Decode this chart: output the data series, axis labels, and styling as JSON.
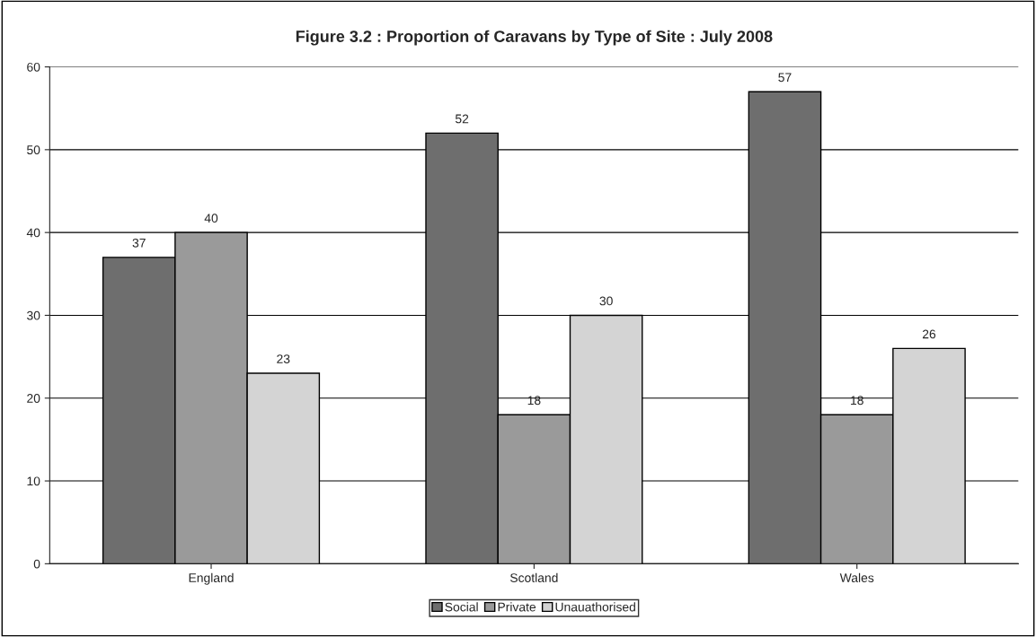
{
  "chart_data": {
    "type": "bar",
    "title": "Figure 3.2 : Proportion of Caravans by Type of Site : July 2008",
    "categories": [
      "England",
      "Scotland",
      "Wales"
    ],
    "series": [
      {
        "name": "Social",
        "color": "#6e6e6e",
        "values": [
          37,
          52,
          57
        ]
      },
      {
        "name": "Private",
        "color": "#9a9a9a",
        "values": [
          40,
          18,
          18
        ]
      },
      {
        "name": "Unauathorised",
        "color": "#d4d4d4",
        "values": [
          23,
          30,
          26
        ]
      }
    ],
    "ylim": [
      0,
      60
    ],
    "yticks": [
      0,
      10,
      20,
      30,
      40,
      50,
      60
    ],
    "grid": "y",
    "legend": "bottom",
    "data_labels": true
  }
}
